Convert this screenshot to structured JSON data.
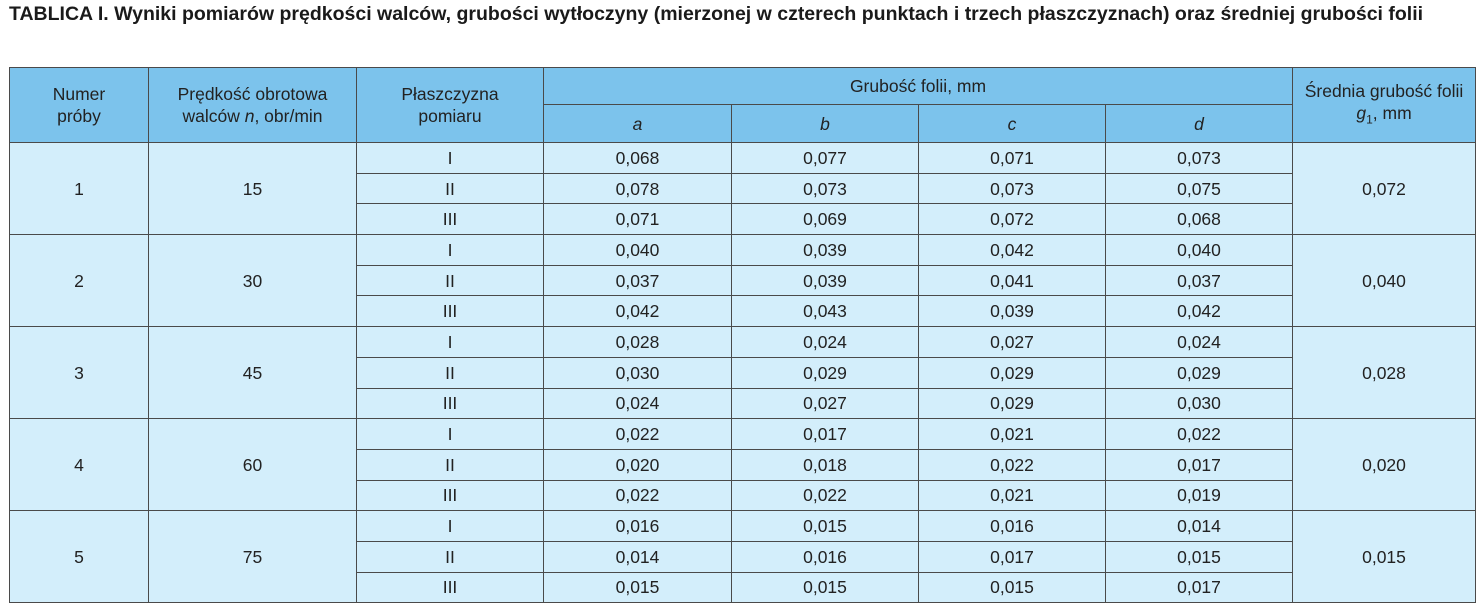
{
  "title": "TABLICA I. Wyniki pomiarów prędkości walców, grubości wytłoczyny (mierzonej w czterech punktach i trzech płaszczyznach) oraz średniej grubości folii",
  "table": {
    "header": {
      "sample": "Numer próby",
      "speed": [
        "Prędkość obrotowa walców ",
        "n",
        ", obr/min"
      ],
      "plane": "Płaszczyzna pomiaru",
      "thickness": "Grubość folii, mm",
      "points": [
        "a",
        "b",
        "c",
        "d"
      ],
      "mean": [
        "Średnia grubość folii ",
        "g",
        "1",
        ", mm"
      ]
    },
    "groups": [
      {
        "sample": "1",
        "speed": "15",
        "mean": "0,072",
        "rows": [
          {
            "plane": "I",
            "values": [
              "0,068",
              "0,077",
              "0,071",
              "0,073"
            ]
          },
          {
            "plane": "II",
            "values": [
              "0,078",
              "0,073",
              "0,073",
              "0,075"
            ]
          },
          {
            "plane": "III",
            "values": [
              "0,071",
              "0,069",
              "0,072",
              "0,068"
            ]
          }
        ]
      },
      {
        "sample": "2",
        "speed": "30",
        "mean": "0,040",
        "rows": [
          {
            "plane": "I",
            "values": [
              "0,040",
              "0,039",
              "0,042",
              "0,040"
            ]
          },
          {
            "plane": "II",
            "values": [
              "0,037",
              "0,039",
              "0,041",
              "0,037"
            ]
          },
          {
            "plane": "III",
            "values": [
              "0,042",
              "0,043",
              "0,039",
              "0,042"
            ]
          }
        ]
      },
      {
        "sample": "3",
        "speed": "45",
        "mean": "0,028",
        "rows": [
          {
            "plane": "I",
            "values": [
              "0,028",
              "0,024",
              "0,027",
              "0,024"
            ]
          },
          {
            "plane": "II",
            "values": [
              "0,030",
              "0,029",
              "0,029",
              "0,029"
            ]
          },
          {
            "plane": "III",
            "values": [
              "0,024",
              "0,027",
              "0,029",
              "0,030"
            ]
          }
        ]
      },
      {
        "sample": "4",
        "speed": "60",
        "mean": "0,020",
        "rows": [
          {
            "plane": "I",
            "values": [
              "0,022",
              "0,017",
              "0,021",
              "0,022"
            ]
          },
          {
            "plane": "II",
            "values": [
              "0,020",
              "0,018",
              "0,022",
              "0,017"
            ]
          },
          {
            "plane": "III",
            "values": [
              "0,022",
              "0,022",
              "0,021",
              "0,019"
            ]
          }
        ]
      },
      {
        "sample": "5",
        "speed": "75",
        "mean": "0,015",
        "rows": [
          {
            "plane": "I",
            "values": [
              "0,016",
              "0,015",
              "0,016",
              "0,014"
            ]
          },
          {
            "plane": "II",
            "values": [
              "0,014",
              "0,016",
              "0,017",
              "0,015"
            ]
          },
          {
            "plane": "III",
            "values": [
              "0,015",
              "0,015",
              "0,015",
              "0,017"
            ]
          }
        ]
      }
    ]
  }
}
